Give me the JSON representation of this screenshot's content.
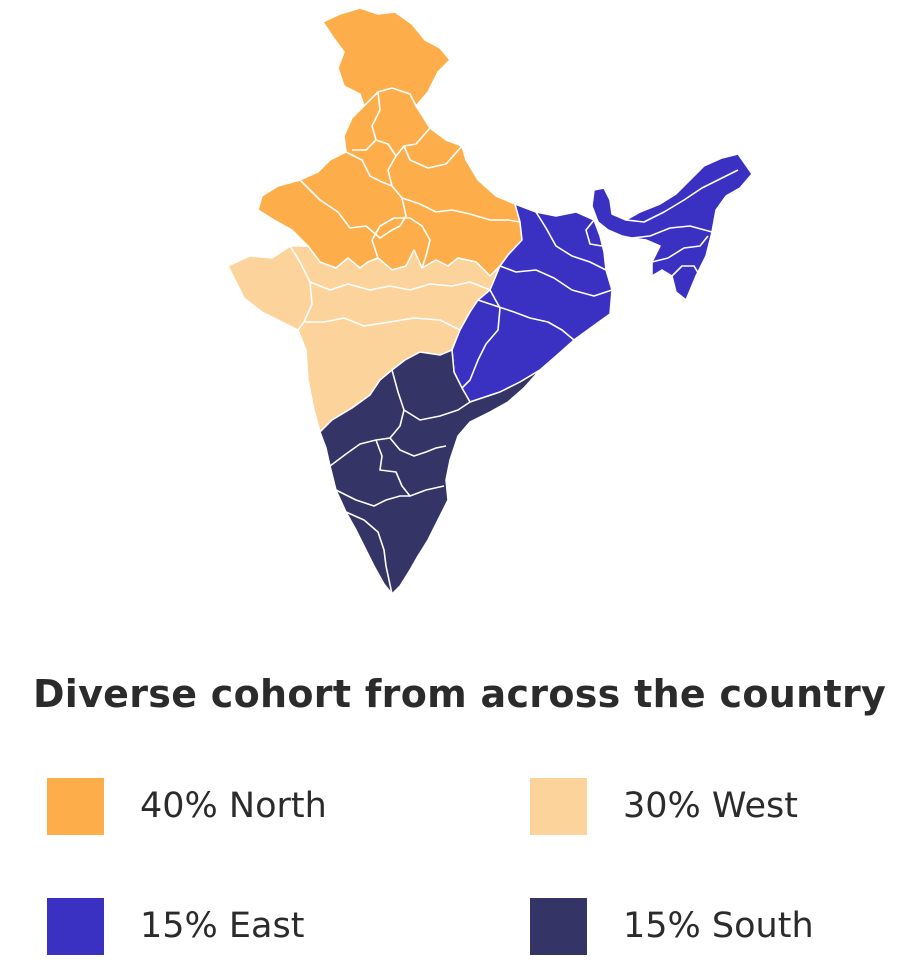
{
  "title": "Diverse cohort from across the country",
  "regions": {
    "north": {
      "label": "40% North",
      "percent": 40,
      "color": "#FDAE4B"
    },
    "west": {
      "label": "30% West",
      "percent": 30,
      "color": "#FDD39C"
    },
    "east": {
      "label": "15% East",
      "percent": 15,
      "color": "#3A31C2"
    },
    "south": {
      "label": "15% South",
      "percent": 15,
      "color": "#353466"
    }
  },
  "border_color": "#ffffff"
}
